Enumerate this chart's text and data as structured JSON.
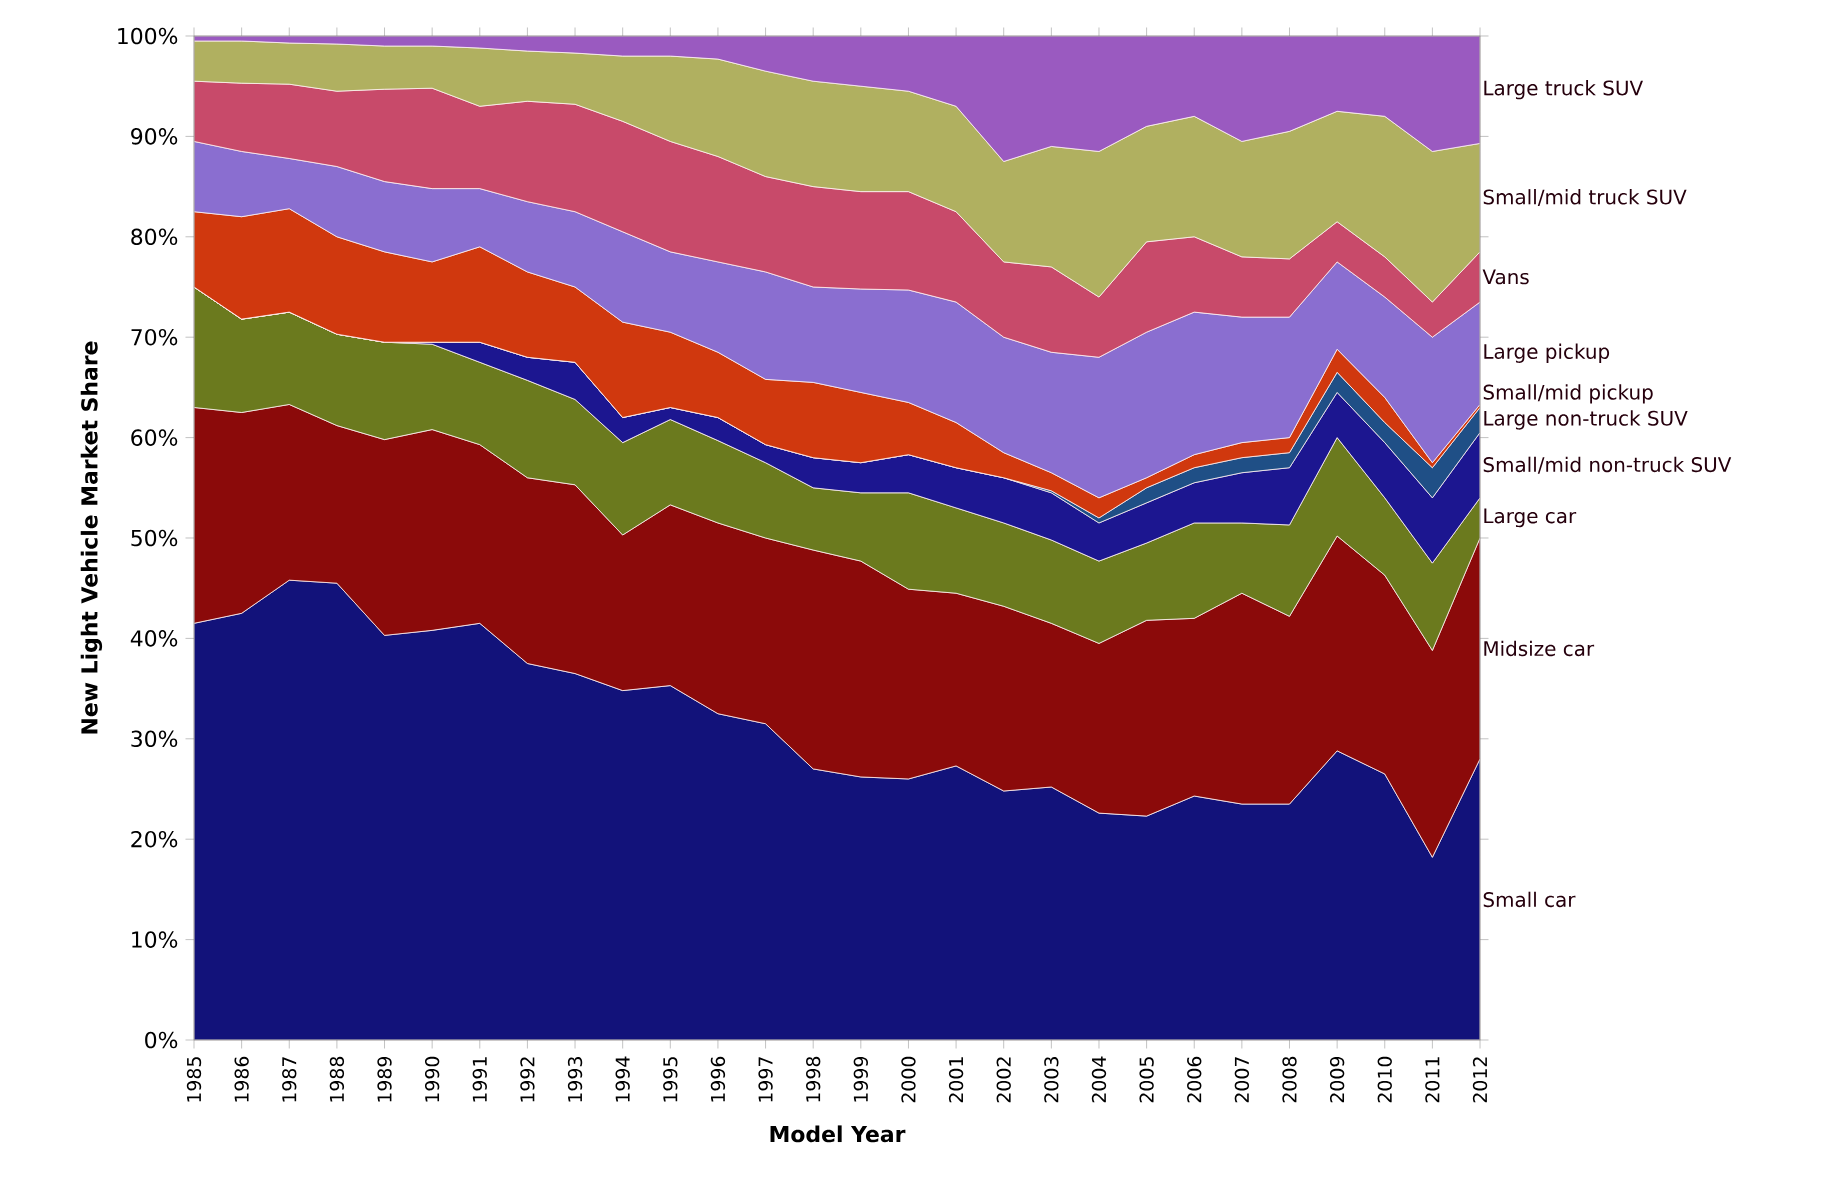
{
  "chart_data": {
    "type": "area",
    "stacked": true,
    "xlabel": "Model Year",
    "ylabel": "New Light Vehicle Market Share",
    "x": [
      1985,
      1986,
      1987,
      1988,
      1989,
      1990,
      1991,
      1992,
      1993,
      1994,
      1995,
      1996,
      1997,
      1998,
      1999,
      2000,
      2001,
      2002,
      2003,
      2004,
      2005,
      2006,
      2007,
      2008,
      2009,
      2010,
      2011,
      2012
    ],
    "xlim": [
      1985,
      2012
    ],
    "xticks": [
      {
        "value": 1985,
        "label": "1985"
      },
      {
        "value": 1986,
        "label": "1986"
      },
      {
        "value": 1987,
        "label": "1987"
      },
      {
        "value": 1988,
        "label": "1988"
      },
      {
        "value": 1989,
        "label": "1989"
      },
      {
        "value": 1990,
        "label": "1990"
      },
      {
        "value": 1991,
        "label": "1991"
      },
      {
        "value": 1992,
        "label": "1992"
      },
      {
        "value": 1993,
        "label": "1993"
      },
      {
        "value": 1994,
        "label": "1994"
      },
      {
        "value": 1995,
        "label": "1995"
      },
      {
        "value": 1996,
        "label": "1996"
      },
      {
        "value": 1997,
        "label": "1997"
      },
      {
        "value": 1998,
        "label": "1998"
      },
      {
        "value": 1999,
        "label": "1999"
      },
      {
        "value": 2000,
        "label": "2000"
      },
      {
        "value": 2001,
        "label": "2001"
      },
      {
        "value": 2002,
        "label": "2002"
      },
      {
        "value": 2003,
        "label": "2003"
      },
      {
        "value": 2004,
        "label": "2004"
      },
      {
        "value": 2005,
        "label": "2005"
      },
      {
        "value": 2006,
        "label": "2006"
      },
      {
        "value": 2007,
        "label": "2007"
      },
      {
        "value": 2008,
        "label": "2008"
      },
      {
        "value": 2009,
        "label": "2009"
      },
      {
        "value": 2010,
        "label": "2010"
      },
      {
        "value": 2011,
        "label": "2011"
      },
      {
        "value": 2012,
        "label": "2012"
      }
    ],
    "ylim": [
      0,
      100
    ],
    "yticks": [
      {
        "value": 0,
        "label": "0%"
      },
      {
        "value": 10,
        "label": "10%"
      },
      {
        "value": 20,
        "label": "20%"
      },
      {
        "value": 30,
        "label": "30%"
      },
      {
        "value": 40,
        "label": "40%"
      },
      {
        "value": 50,
        "label": "50%"
      },
      {
        "value": 60,
        "label": "60%"
      },
      {
        "value": 70,
        "label": "70%"
      },
      {
        "value": 80,
        "label": "80%"
      },
      {
        "value": 90,
        "label": "90%"
      },
      {
        "value": 100,
        "label": "100%"
      }
    ],
    "series": [
      {
        "name": "Small car",
        "color": "#12127a",
        "values": [
          41.5,
          42.5,
          45.8,
          45.5,
          40.3,
          40.8,
          41.5,
          37.5,
          36.5,
          34.8,
          35.3,
          32.5,
          31.5,
          27,
          26.2,
          26,
          27.3,
          24.8,
          25.2,
          22.6,
          22.3,
          24.3,
          23.5,
          23.5,
          28.8,
          26.5,
          18.2,
          28
        ]
      },
      {
        "name": "Midsize car",
        "color": "#8b0a0a",
        "values": [
          21.5,
          20,
          17.5,
          15.7,
          19.5,
          20,
          17.8,
          18.5,
          18.8,
          15.5,
          18,
          19,
          18.5,
          21.8,
          21.5,
          18.9,
          17.2,
          18.4,
          16.3,
          16.9,
          19.5,
          17.7,
          21,
          18.7,
          21.4,
          19.8,
          20.6,
          22
        ]
      },
      {
        "name": "Large car",
        "color": "#6b7a1e",
        "values": [
          12,
          9.3,
          9.2,
          9.1,
          9.7,
          8.5,
          8.2,
          9.7,
          8.5,
          9.2,
          8.5,
          8.2,
          7.5,
          6.2,
          6.8,
          9.6,
          8.5,
          8.3,
          8.3,
          8.2,
          7.7,
          9.5,
          7,
          9.1,
          9.8,
          7.7,
          8.7,
          4
        ]
      },
      {
        "name": "Small/mid non-truck SUV",
        "color": "#1c1690",
        "values": [
          0,
          0,
          0,
          0,
          0,
          0.2,
          2,
          2.3,
          3.7,
          2.5,
          1.2,
          2.3,
          1.8,
          3,
          3,
          3.8,
          4,
          4.5,
          4.7,
          3.8,
          4,
          4,
          5,
          5.7,
          4.5,
          5.5,
          6.5,
          6.5
        ]
      },
      {
        "name": "Large non-truck SUV",
        "color": "#1f4f86",
        "values": [
          0,
          0,
          0,
          0,
          0,
          0,
          0,
          0,
          0,
          0,
          0,
          0,
          0,
          0,
          0,
          0,
          0,
          0,
          0.2,
          0.5,
          1.5,
          1.5,
          1.5,
          1.5,
          2,
          2,
          3,
          2.5
        ]
      },
      {
        "name": "Small/mid pickup",
        "color": "#d0380e",
        "values": [
          7.5,
          10.2,
          10.3,
          9.7,
          9,
          8,
          9.5,
          8.5,
          7.5,
          9.5,
          7.5,
          6.5,
          6.5,
          7.5,
          7,
          5.2,
          4.5,
          2.5,
          1.8,
          2,
          1,
          1.3,
          1.5,
          1.5,
          2.3,
          2.5,
          0.5,
          0.3
        ]
      },
      {
        "name": "Large pickup",
        "color": "#8a6ed0",
        "values": [
          7,
          6.5,
          5,
          7,
          7,
          7.3,
          5.8,
          7,
          7.5,
          9,
          8,
          9,
          10.7,
          9.5,
          10.3,
          11.2,
          12,
          11.5,
          12,
          14,
          14.5,
          14.2,
          12.5,
          12,
          8.7,
          10,
          12.5,
          10.2
        ]
      },
      {
        "name": "Vans",
        "color": "#c84a6a",
        "values": [
          6,
          6.8,
          7.4,
          7.5,
          9.2,
          10,
          8.2,
          10,
          10.7,
          11,
          11,
          10.5,
          9.5,
          10,
          9.7,
          9.8,
          9,
          7.5,
          8.5,
          6,
          9,
          7.5,
          6,
          5.8,
          4,
          4,
          3.5,
          5
        ]
      },
      {
        "name": "Small/mid truck SUV",
        "color": "#b0b060",
        "values": [
          4,
          4.2,
          4.1,
          4.7,
          4.3,
          4.2,
          5.8,
          5,
          5.1,
          6.5,
          8.5,
          9.7,
          10.5,
          10.5,
          10.5,
          10,
          10.5,
          10,
          12,
          14.5,
          11.5,
          12,
          11.5,
          12.7,
          11,
          14,
          15,
          10.8
        ]
      },
      {
        "name": "Large truck SUV",
        "color": "#9a5ac0",
        "values": [
          0.5,
          0.5,
          0.7,
          0.8,
          1,
          1,
          1.2,
          1.5,
          1.7,
          2,
          2,
          2.3,
          3.5,
          4.5,
          5,
          5.5,
          7,
          12.5,
          11,
          11.5,
          9,
          8,
          10.5,
          9.5,
          7.5,
          8,
          11.5,
          10.7
        ]
      }
    ]
  }
}
